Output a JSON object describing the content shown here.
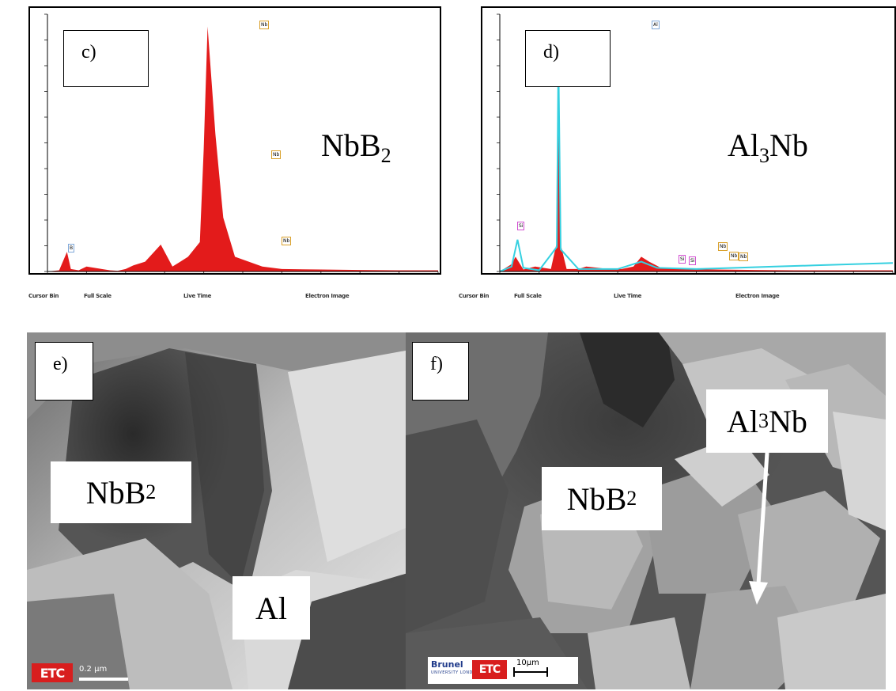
{
  "panels": {
    "c": {
      "tag": "c)",
      "phase_base": "NbB",
      "phase_sub": "2",
      "peak_labels": [
        "Nb",
        "Nb",
        "Nb",
        "B"
      ],
      "status": [
        "Cursor Bin",
        "Full Scale",
        "Live Time",
        "Electron Image"
      ],
      "colors": {
        "spectrum": "#e31b1b",
        "peak_label_border": "#d9a02a"
      }
    },
    "d": {
      "tag": "d)",
      "phase_base": "Al",
      "phase_mid": "3",
      "phase_end": "Nb",
      "peak_labels": [
        "Al",
        "Si",
        "Nb",
        "Nb",
        "Nb",
        "Si",
        "Si"
      ],
      "status": [
        "Cursor Bin",
        "Full Scale",
        "Live Time",
        "Electron Image"
      ],
      "colors": {
        "spectrum": "#e31b1b",
        "overlay": "#35d0e0",
        "peak_label_border": "#d9a02a",
        "si_label_border": "#d24fd2"
      }
    },
    "e": {
      "tag": "e)",
      "label_nbb2_base": "NbB",
      "label_nbb2_sub": "2",
      "label_al": "Al",
      "logo": "ETC",
      "scale_text": "0.2 µm"
    },
    "f": {
      "tag": "f)",
      "label_nbb2_base": "NbB",
      "label_nbb2_sub": "2",
      "label_al3nb_base": "Al",
      "label_al3nb_sub": "3",
      "label_al3nb_end": "Nb",
      "logo": "ETC",
      "brunel_name": "Brunel",
      "brunel_sub": "UNIVERSITY LONDON",
      "scale_text": "10µm"
    }
  },
  "chart_data": [
    {
      "type": "line",
      "panel": "c",
      "series": [
        {
          "values_x": [
            0.0,
            0.3,
            0.5,
            0.6,
            0.8,
            1.0,
            1.6,
            1.8,
            2.0,
            2.2,
            2.5,
            2.9,
            3.2,
            3.4,
            3.6,
            3.9,
            4.0,
            4.1,
            4.3,
            4.5,
            4.8,
            5.5,
            6.0,
            7.0,
            8.0,
            9.0,
            10.0
          ],
          "values_y": [
            0,
            5,
            80,
            10,
            5,
            20,
            5,
            3,
            10,
            25,
            40,
            110,
            20,
            40,
            60,
            120,
            500,
            1000,
            560,
            220,
            60,
            20,
            10,
            8,
            6,
            5,
            5
          ]
        }
      ]
    },
    {
      "type": "line",
      "panel": "d",
      "series": [
        {
          "name": "",
          "values_x": [
            0.0,
            0.3,
            0.4,
            0.6,
            0.9,
            1.3,
            1.45,
            1.49,
            1.55,
            1.7,
            2.0,
            2.2,
            2.5,
            2.8,
            3.1,
            3.4,
            3.6,
            3.8,
            4.1,
            4.5,
            5.5,
            6.5,
            7.5,
            9.0,
            10.0
          ],
          "values_y": [
            0,
            30,
            60,
            8,
            20,
            10,
            120,
            850,
            110,
            10,
            10,
            20,
            15,
            10,
            10,
            20,
            60,
            40,
            15,
            10,
            8,
            6,
            5,
            5,
            5
          ]
        },
        {
          "name": "",
          "values_x": [
            0.0,
            0.3,
            0.45,
            0.6,
            1.0,
            1.45,
            1.49,
            1.55,
            2.0,
            3.0,
            3.6,
            4.0,
            5.0,
            6.0,
            7.0,
            8.0,
            9.0,
            10.0
          ],
          "values_y": [
            0,
            20,
            130,
            15,
            5,
            100,
            870,
            90,
            10,
            10,
            40,
            15,
            10,
            15,
            20,
            25,
            30,
            35
          ]
        }
      ]
    }
  ]
}
